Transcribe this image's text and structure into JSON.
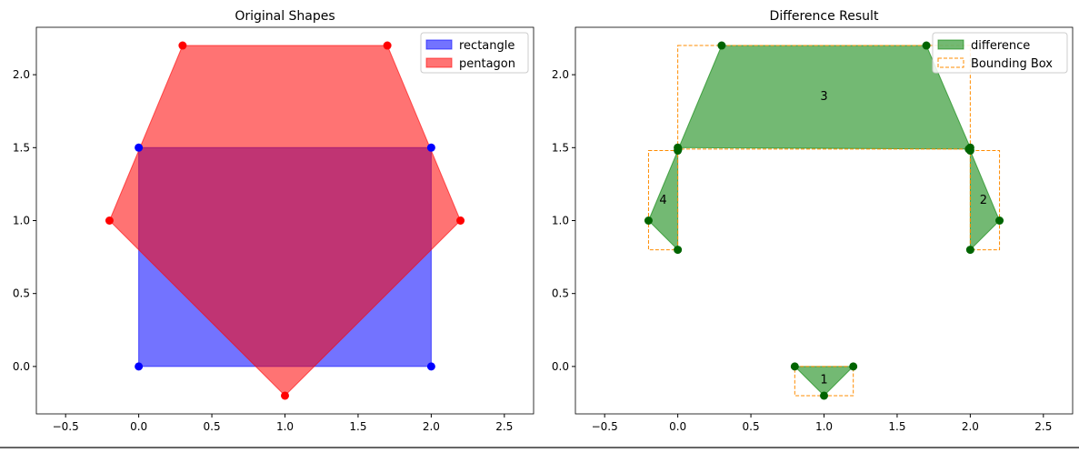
{
  "chart_data": [
    {
      "type": "area",
      "title": "Original Shapes",
      "xlim": [
        -0.7,
        2.7
      ],
      "ylim": [
        -0.325,
        2.325
      ],
      "xticks": [
        -0.5,
        0.0,
        0.5,
        1.0,
        1.5,
        2.0,
        2.5
      ],
      "xtick_labels": [
        "−0.5",
        "0.0",
        "0.5",
        "1.0",
        "1.5",
        "2.0",
        "2.5"
      ],
      "yticks": [
        0.0,
        0.5,
        1.0,
        1.5,
        2.0
      ],
      "ytick_labels": [
        "0.0",
        "0.5",
        "1.0",
        "1.5",
        "2.0"
      ],
      "legend_position": "top-right",
      "series": [
        {
          "name": "rectangle",
          "color": "#0000ff",
          "point_color": "#0000ff",
          "points": [
            [
              0,
              0
            ],
            [
              2,
              0
            ],
            [
              2,
              1.5
            ],
            [
              0,
              1.5
            ]
          ]
        },
        {
          "name": "pentagon",
          "color": "#ff0000",
          "point_color": "#ff0000",
          "points": [
            [
              0.3,
              2.2
            ],
            [
              1.7,
              2.2
            ],
            [
              2.2,
              1
            ],
            [
              1,
              -0.2
            ],
            [
              -0.2,
              1
            ]
          ]
        }
      ]
    },
    {
      "type": "area",
      "title": "Difference Result",
      "xlim": [
        -0.7,
        2.7
      ],
      "ylim": [
        -0.325,
        2.325
      ],
      "xticks": [
        -0.5,
        0.0,
        0.5,
        1.0,
        1.5,
        2.0,
        2.5
      ],
      "xtick_labels": [
        "−0.5",
        "0.0",
        "0.5",
        "1.0",
        "1.5",
        "2.0",
        "2.5"
      ],
      "yticks": [
        0.0,
        0.5,
        1.0,
        1.5,
        2.0
      ],
      "ytick_labels": [
        "0.0",
        "0.5",
        "1.0",
        "1.5",
        "2.0"
      ],
      "legend_position": "top-right",
      "legend": [
        "difference",
        "Bounding Box"
      ],
      "color": "#008000",
      "point_color": "#006400",
      "bbox_color": "#ff8c00",
      "pieces": [
        {
          "label": "1",
          "points": [
            [
              0.8,
              0
            ],
            [
              1.2,
              0
            ],
            [
              1,
              -0.2
            ]
          ],
          "label_pos": [
            1.0,
            -0.09
          ]
        },
        {
          "label": "2",
          "points": [
            [
              2,
              1.48
            ],
            [
              2.2,
              1
            ],
            [
              2,
              0.8
            ]
          ],
          "label_pos": [
            2.09,
            1.14
          ]
        },
        {
          "label": "3",
          "points": [
            [
              0.3,
              2.2
            ],
            [
              1.7,
              2.2
            ],
            [
              2,
              1.5
            ],
            [
              1.99,
              1.49
            ],
            [
              0,
              1.5
            ],
            [
              0.003,
              1.49
            ]
          ],
          "label_pos": [
            1.0,
            1.85
          ]
        },
        {
          "label": "4",
          "points": [
            [
              -0.2,
              1
            ],
            [
              0,
              1.48
            ],
            [
              0,
              0.8
            ]
          ],
          "label_pos": [
            -0.1,
            1.14
          ]
        }
      ]
    }
  ]
}
